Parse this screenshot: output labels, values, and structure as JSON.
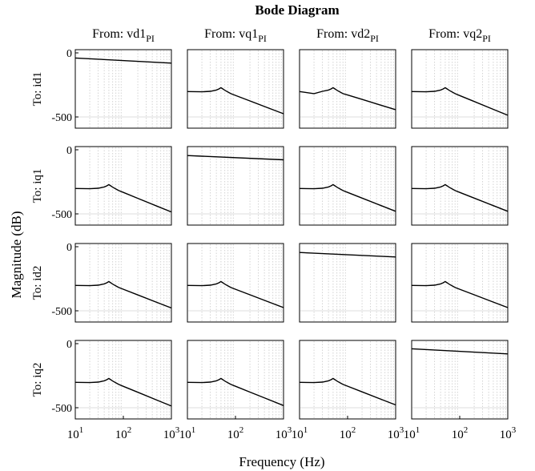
{
  "chart_data": {
    "type": "line",
    "title": "Bode Diagram",
    "xlabel": "Frequency  (Hz)",
    "ylabel": "Magnitude (dB)",
    "xscale": "log",
    "xlim": [
      10,
      1000
    ],
    "ylim": [
      -600,
      0
    ],
    "grid": "vertical log minor lines (dotted)",
    "input_labels": [
      {
        "base": "From: vd1",
        "sub": "PI"
      },
      {
        "base": "From: vq1",
        "sub": "PI"
      },
      {
        "base": "From: vd2",
        "sub": "PI"
      },
      {
        "base": "From: vq2",
        "sub": "PI"
      }
    ],
    "output_labels": [
      "To: id1",
      "To: iq1",
      "To: id2",
      "To: iq2"
    ],
    "y_tick_labels": [
      "0",
      "-500"
    ],
    "x_tick_labels": [
      {
        "base": "10",
        "exp": "1"
      },
      {
        "base": "10",
        "exp": "2"
      },
      {
        "base": "10",
        "exp": "3"
      }
    ],
    "diagonal_response": {
      "x": [
        10,
        1000
      ],
      "y": [
        -40,
        -80
      ]
    },
    "offdiagonal_response": {
      "x": [
        10,
        20,
        30,
        40,
        45,
        50,
        55,
        60,
        80,
        100,
        200,
        500,
        1000
      ],
      "y": [
        -302,
        -304,
        -300,
        -290,
        -282,
        -272,
        -282,
        -292,
        -318,
        -335,
        -380,
        -440,
        -487
      ]
    },
    "panels": [
      [
        {
          "kind": "diagonal",
          "y": [
            -40,
            -80
          ]
        },
        {
          "kind": "resonant",
          "y_end": -475
        },
        {
          "kind": "resonant_notched",
          "y_end": -443
        },
        {
          "kind": "resonant",
          "y_end": -487
        }
      ],
      [
        {
          "kind": "resonant",
          "y_end": -485
        },
        {
          "kind": "diagonal",
          "y": [
            -45,
            -78
          ]
        },
        {
          "kind": "resonant",
          "y_end": -480
        },
        {
          "kind": "resonant",
          "y_end": -480
        }
      ],
      [
        {
          "kind": "resonant",
          "y_end": -478
        },
        {
          "kind": "resonant",
          "y_end": -475
        },
        {
          "kind": "diagonal",
          "y": [
            -45,
            -80
          ]
        },
        {
          "kind": "resonant",
          "y_end": -475
        }
      ],
      [
        {
          "kind": "resonant",
          "y_end": -487
        },
        {
          "kind": "resonant",
          "y_end": -483
        },
        {
          "kind": "resonant",
          "y_end": -478
        },
        {
          "kind": "diagonal",
          "y": [
            -40,
            -80
          ]
        }
      ]
    ]
  }
}
